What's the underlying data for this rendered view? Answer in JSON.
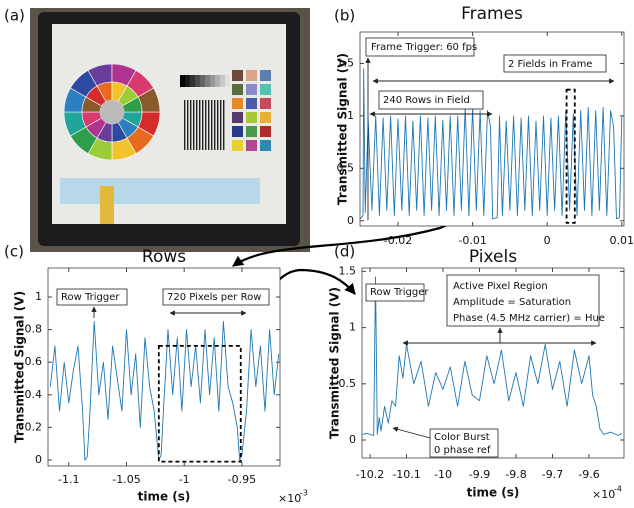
{
  "photo": {
    "panel_label": "(a)"
  },
  "chart_data": [
    {
      "type": "line",
      "panel_label": "(b)",
      "title": "Frames",
      "ylabel": "Transmitted Signal (V)",
      "color": "#1f77b4",
      "xlim": [
        -0.0251,
        0.0103
      ],
      "xticks": [
        -0.02,
        -0.01,
        0,
        0.01
      ],
      "ylim": [
        -0.05,
        1.8
      ],
      "yticks": [
        0,
        0.5,
        1,
        1.5
      ],
      "x": [
        -0.025,
        -0.0247,
        -0.0246,
        -0.0244,
        -0.024,
        -0.0235,
        -0.023,
        -0.0225,
        -0.022,
        -0.0215,
        -0.021,
        -0.0205,
        -0.02,
        -0.0195,
        -0.019,
        -0.0185,
        -0.018,
        -0.0175,
        -0.017,
        -0.0165,
        -0.016,
        -0.0155,
        -0.015,
        -0.0145,
        -0.014,
        -0.0135,
        -0.013,
        -0.0125,
        -0.012,
        -0.0115,
        -0.011,
        -0.0105,
        -0.01,
        -0.0095,
        -0.009,
        -0.0085,
        -0.008,
        -0.0076,
        -0.0073,
        -0.0067,
        -0.0064,
        -0.006,
        -0.0055,
        -0.005,
        -0.0045,
        -0.004,
        -0.0035,
        -0.003,
        -0.0025,
        -0.002,
        -0.0015,
        -0.001,
        -0.0005,
        0,
        0.0005,
        0.001,
        0.0015,
        0.002,
        0.0025,
        0.003,
        0.0035,
        0.004,
        0.0045,
        0.005,
        0.0055,
        0.006,
        0.0065,
        0.007,
        0.0075,
        0.008,
        0.0085,
        0.0089,
        0.0093,
        0.0097,
        0.01
      ],
      "values": [
        0.02,
        0.05,
        1.45,
        0.08,
        0.95,
        0.1,
        1.0,
        0.05,
        0.98,
        0.1,
        1.0,
        0.05,
        0.97,
        0.1,
        1.0,
        0.05,
        0.95,
        0.1,
        1.0,
        0.05,
        0.98,
        0.1,
        1.0,
        0.05,
        0.96,
        0.1,
        1.0,
        0.05,
        1.0,
        0.1,
        1.08,
        0.05,
        1.08,
        0.1,
        1.05,
        0.05,
        1.05,
        0.9,
        0.02,
        0.03,
        1.0,
        0.05,
        0.95,
        0.1,
        1.0,
        0.05,
        0.98,
        0.1,
        1.0,
        0.05,
        0.95,
        0.1,
        1.0,
        0.05,
        0.98,
        0.1,
        1.0,
        0.05,
        1.05,
        0.1,
        1.02,
        0.05,
        1.05,
        0.1,
        1.08,
        0.05,
        1.05,
        0.1,
        1.08,
        0.05,
        1.05,
        0.9,
        0.02,
        0.03,
        1.0
      ],
      "highlight_box": {
        "x": [
          0.0026,
          0.0037
        ],
        "y": [
          -0.02,
          1.25
        ]
      },
      "annotations": [
        "Frame Trigger: 60 fps",
        "2 Fields in Frame",
        "240 Rows in Field"
      ]
    },
    {
      "type": "line",
      "panel_label": "(c)",
      "title": "Rows",
      "ylabel": "Transmitted Signal (V)",
      "xlabel": "time (s)",
      "x_exponent_base": "×10",
      "x_exponent": "-3",
      "color": "#1f77b4",
      "xlim": [
        -1.118,
        -0.917
      ],
      "xticks": [
        -1.1,
        -1.05,
        -1,
        -0.95
      ],
      "ylim": [
        -0.037,
        1.178
      ],
      "yticks": [
        0,
        0.2,
        0.4,
        0.6,
        0.8,
        1
      ],
      "x": [
        -1.116,
        -1.112,
        -1.108,
        -1.104,
        -1.1,
        -1.096,
        -1.092,
        -1.088,
        -1.086,
        -1.084,
        -1.082,
        -1.078,
        -1.074,
        -1.07,
        -1.066,
        -1.062,
        -1.058,
        -1.054,
        -1.05,
        -1.046,
        -1.042,
        -1.038,
        -1.034,
        -1.03,
        -1.026,
        -1.022,
        -1.02,
        -1.018,
        -1.014,
        -1.01,
        -1.006,
        -1.002,
        -0.998,
        -0.994,
        -0.99,
        -0.986,
        -0.982,
        -0.978,
        -0.974,
        -0.97,
        -0.966,
        -0.962,
        -0.958,
        -0.954,
        -0.952,
        -0.95,
        -0.946,
        -0.942,
        -0.938,
        -0.934,
        -0.93,
        -0.926,
        -0.922,
        -0.918
      ],
      "values": [
        0.45,
        0.7,
        0.3,
        0.6,
        0.35,
        0.55,
        0.7,
        0.3,
        0.0,
        0.02,
        0.25,
        0.85,
        0.4,
        0.6,
        0.25,
        0.7,
        0.5,
        0.3,
        0.8,
        0.4,
        0.65,
        0.2,
        0.75,
        0.45,
        0.3,
        0.0,
        0.03,
        0.3,
        0.8,
        0.4,
        0.75,
        0.3,
        0.8,
        0.45,
        0.7,
        0.35,
        0.8,
        0.4,
        0.75,
        0.3,
        0.85,
        0.45,
        0.35,
        0.2,
        0.0,
        0.03,
        0.3,
        0.8,
        0.45,
        0.7,
        0.3,
        0.8,
        0.4,
        0.65
      ],
      "highlight_box": {
        "x": [
          -1.022,
          -0.951
        ],
        "y": [
          -0.01,
          0.7
        ]
      },
      "annotations": [
        "Row Trigger",
        "720 Pixels per Row"
      ]
    },
    {
      "type": "line",
      "panel_label": "(d)",
      "title": "Pixels",
      "ylabel": "Transmitted Signal (V)",
      "xlabel": "time (s)",
      "x_exponent_base": "×10",
      "x_exponent": "-4",
      "color": "#1f77b4",
      "xlim": [
        -10.222,
        -9.504
      ],
      "xticks": [
        -10.2,
        -10.1,
        -10,
        -9.9,
        -9.8,
        -9.7,
        -9.6
      ],
      "ylim": [
        -0.16,
        1.53
      ],
      "yticks": [
        0,
        0.5,
        1,
        1.5
      ],
      "x": [
        -10.22,
        -10.21,
        -10.19,
        -10.185,
        -10.18,
        -10.175,
        -10.17,
        -10.16,
        -10.15,
        -10.14,
        -10.13,
        -10.12,
        -10.11,
        -10.1,
        -10.08,
        -10.06,
        -10.04,
        -10.02,
        -10,
        -9.98,
        -9.96,
        -9.94,
        -9.92,
        -9.9,
        -9.88,
        -9.86,
        -9.84,
        -9.82,
        -9.8,
        -9.78,
        -9.76,
        -9.74,
        -9.72,
        -9.7,
        -9.68,
        -9.66,
        -9.64,
        -9.62,
        -9.6,
        -9.59,
        -9.58,
        -9.57,
        -9.56,
        -9.54,
        -9.52,
        -9.51
      ],
      "values": [
        0.05,
        0.06,
        0.04,
        1.45,
        0.05,
        0.2,
        0.08,
        0.3,
        0.15,
        0.35,
        0.3,
        0.75,
        0.55,
        0.85,
        0.5,
        0.7,
        0.3,
        0.6,
        0.45,
        0.65,
        0.3,
        0.7,
        0.4,
        0.35,
        0.75,
        0.5,
        0.8,
        0.35,
        0.6,
        0.3,
        0.75,
        0.5,
        0.85,
        0.45,
        0.7,
        0.3,
        0.8,
        0.5,
        0.75,
        0.4,
        0.3,
        0.1,
        0.05,
        0.07,
        0.04,
        0.06
      ],
      "annotations": [
        "Row Trigger",
        "Active Pixel Region",
        "Amplitude = Saturation",
        "Phase (4.5 MHz carrier) = Hue",
        "Color Burst",
        "0 phase ref"
      ]
    }
  ]
}
